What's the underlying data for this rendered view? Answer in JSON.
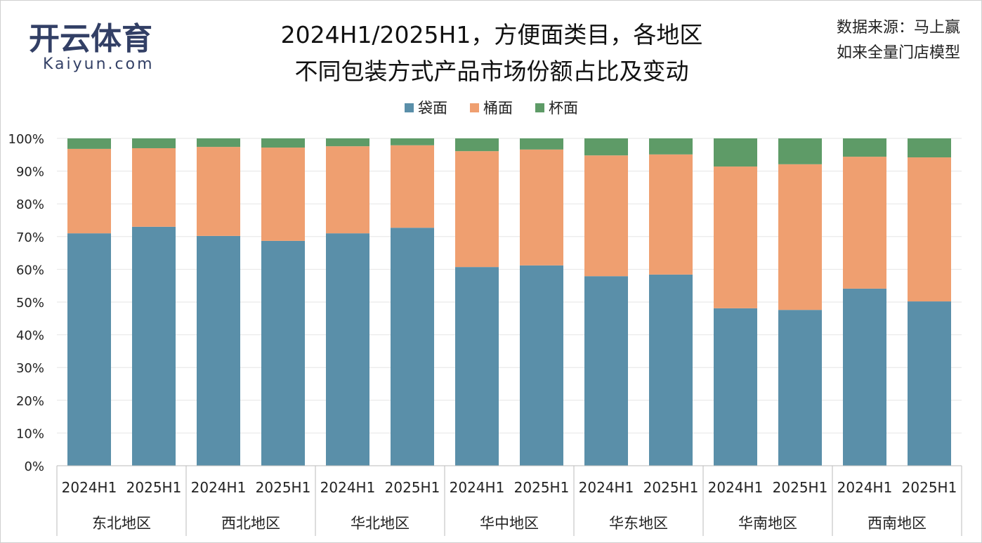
{
  "chart_data": {
    "type": "bar",
    "stacked": true,
    "title_line1": "2024H1/2025H1，方便面类目，各地区",
    "title_line2": "不同包装方式产品市场份额占比及变动",
    "source_line1": "数据来源：马上赢",
    "source_line2": "如来全量门店模型",
    "ylim": [
      0,
      100
    ],
    "yticks": [
      "0%",
      "10%",
      "20%",
      "30%",
      "40%",
      "50%",
      "60%",
      "70%",
      "80%",
      "90%",
      "100%"
    ],
    "legend_position": "top-center",
    "colors": {
      "袋面": "#5a8fa9",
      "桶面": "#ef9f70",
      "杯面": "#5e9b67"
    },
    "regions": [
      "东北地区",
      "西北地区",
      "华北地区",
      "华中地区",
      "华东地区",
      "华南地区",
      "西南地区"
    ],
    "periods": [
      "2024H1",
      "2025H1"
    ],
    "series": [
      {
        "name": "袋面",
        "values": [
          71.0,
          73.0,
          70.2,
          68.7,
          71.0,
          72.7,
          60.7,
          61.2,
          57.9,
          58.4,
          48.1,
          47.6,
          54.1,
          50.2
        ]
      },
      {
        "name": "桶面",
        "values": [
          25.8,
          24.0,
          27.2,
          28.5,
          26.6,
          25.2,
          35.4,
          35.4,
          36.9,
          36.7,
          43.3,
          44.5,
          40.3,
          44.0
        ]
      },
      {
        "name": "杯面",
        "values": [
          3.2,
          3.0,
          2.6,
          2.8,
          2.4,
          2.1,
          3.9,
          3.4,
          5.2,
          4.9,
          8.6,
          7.9,
          5.6,
          5.8
        ]
      }
    ]
  },
  "watermark": {
    "text": "开云体育",
    "sub": "Kaiyun.com"
  }
}
